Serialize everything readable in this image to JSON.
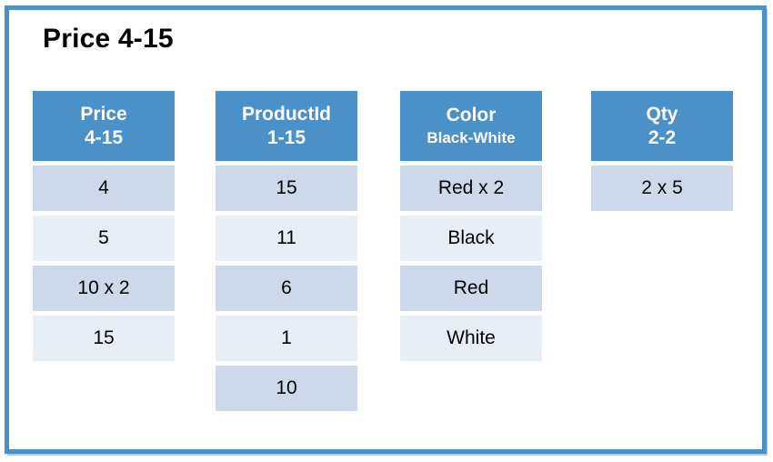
{
  "page": {
    "title": "Price 4-15"
  },
  "colors": {
    "accent_blue": "#4a90c9",
    "row_dark": "#cdd8ea",
    "row_light": "#e8eef6",
    "header_text": "#ffffff",
    "body_text": "#000000"
  },
  "tables": [
    {
      "id": "price",
      "header_line1": "Price",
      "header_line2": "4-15",
      "rows": [
        "4",
        "5",
        "10 x 2",
        "15"
      ]
    },
    {
      "id": "productid",
      "header_line1": "ProductId",
      "header_line2": "1-15",
      "rows": [
        "15",
        "11",
        "6",
        "1",
        "10"
      ]
    },
    {
      "id": "color",
      "header_line1": "Color",
      "header_line2": "Black-White",
      "rows": [
        "Red x 2",
        "Black",
        "Red",
        "White"
      ]
    },
    {
      "id": "qty",
      "header_line1": "Qty",
      "header_line2": "2-2",
      "rows": [
        "2 x 5"
      ]
    }
  ]
}
